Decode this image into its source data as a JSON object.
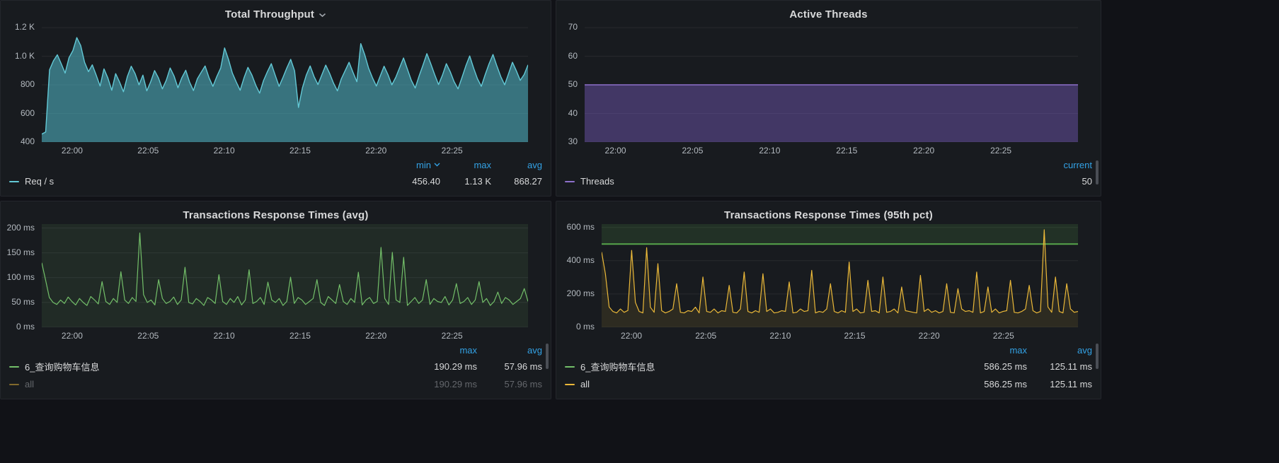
{
  "page": {
    "background": "#111217",
    "panel_background": "#181b1f",
    "accent_blue": "#33a2e5"
  },
  "panels": [
    {
      "title": "Total Throughput",
      "legend": {
        "headers": [
          "min",
          "max",
          "avg"
        ],
        "sorted_column": "min",
        "rows": [
          {
            "label": "Req / s",
            "color": "#63c9d6",
            "values": [
              "456.40",
              "1.13 K",
              "868.27"
            ],
            "dimmed": false
          }
        ]
      }
    },
    {
      "title": "Active Threads",
      "legend": {
        "headers": [
          "current"
        ],
        "rows": [
          {
            "label": "Threads",
            "color": "#8d70cc",
            "values": [
              "50"
            ],
            "dimmed": false
          }
        ]
      }
    },
    {
      "title": "Transactions Response Times (avg)",
      "legend": {
        "headers": [
          "max",
          "avg"
        ],
        "rows": [
          {
            "label": "6_查询购物车信息",
            "color": "#73BF69",
            "values": [
              "190.29 ms",
              "57.96 ms"
            ],
            "dimmed": false
          },
          {
            "label": "all",
            "color": "#EAB839",
            "values": [
              "190.29 ms",
              "57.96 ms"
            ],
            "dimmed": true
          }
        ]
      }
    },
    {
      "title": "Transactions Response Times (95th pct)",
      "legend": {
        "headers": [
          "max",
          "avg"
        ],
        "rows": [
          {
            "label": "6_查询购物车信息",
            "color": "#73BF69",
            "values": [
              "586.25 ms",
              "125.11 ms"
            ],
            "dimmed": false
          },
          {
            "label": "all",
            "color": "#EAB839",
            "values": [
              "586.25 ms",
              "125.11 ms"
            ],
            "dimmed": false
          }
        ]
      }
    }
  ],
  "chart_data": [
    {
      "type": "area",
      "title": "Total Throughput",
      "series_name": "Req / s",
      "legend_position": "bottom",
      "color": "#63c9d6",
      "fill": "rgba(80,180,195,0.58)",
      "line_width": 1.4,
      "y_axis_width": 48,
      "ylim": [
        400,
        1230
      ],
      "y_ticks": [
        {
          "v": 400,
          "label": "400"
        },
        {
          "v": 600,
          "label": "600"
        },
        {
          "v": 800,
          "label": "800"
        },
        {
          "v": 1000,
          "label": "1.0 K"
        },
        {
          "v": 1200,
          "label": "1.2 K"
        }
      ],
      "x_range_minutes": [
        -2,
        30
      ],
      "x_ticks": [
        {
          "m": 0,
          "label": "22:00"
        },
        {
          "m": 5,
          "label": "22:05"
        },
        {
          "m": 10,
          "label": "22:10"
        },
        {
          "m": 15,
          "label": "22:15"
        },
        {
          "m": 20,
          "label": "22:20"
        },
        {
          "m": 25,
          "label": "22:25"
        }
      ],
      "values": [
        456,
        470,
        905,
        968,
        1010,
        948,
        882,
        990,
        1040,
        1130,
        1075,
        958,
        892,
        940,
        868,
        792,
        912,
        848,
        762,
        878,
        820,
        752,
        858,
        930,
        878,
        800,
        868,
        758,
        822,
        900,
        848,
        772,
        832,
        918,
        862,
        780,
        850,
        902,
        820,
        760,
        842,
        888,
        932,
        850,
        790,
        858,
        918,
        1058,
        978,
        882,
        820,
        762,
        850,
        922,
        870,
        798,
        742,
        830,
        892,
        948,
        868,
        790,
        852,
        918,
        978,
        898,
        642,
        778,
        868,
        932,
        858,
        802,
        870,
        938,
        880,
        812,
        758,
        842,
        900,
        958,
        888,
        822,
        1088,
        1012,
        918,
        850,
        792,
        862,
        930,
        872,
        800,
        852,
        920,
        988,
        910,
        832,
        778,
        862,
        938,
        1018,
        948,
        872,
        802,
        868,
        948,
        892,
        822,
        772,
        850,
        932,
        1002,
        918,
        842,
        790,
        872,
        948,
        1012,
        932,
        858,
        800,
        878,
        958,
        898,
        832,
        872,
        940
      ]
    },
    {
      "type": "area",
      "title": "Active Threads",
      "series_name": "Threads",
      "legend_position": "bottom",
      "color": "#8d70cc",
      "fill": "rgba(112,86,178,0.48)",
      "line_width": 1.5,
      "y_axis_width": 30,
      "ylim": [
        30,
        71.5
      ],
      "y_ticks": [
        {
          "v": 30,
          "label": "30"
        },
        {
          "v": 40,
          "label": "40"
        },
        {
          "v": 50,
          "label": "50"
        },
        {
          "v": 60,
          "label": "60"
        },
        {
          "v": 70,
          "label": "70"
        }
      ],
      "x_range_minutes": [
        -2,
        30
      ],
      "x_ticks": [
        {
          "m": 0,
          "label": "22:00"
        },
        {
          "m": 5,
          "label": "22:05"
        },
        {
          "m": 10,
          "label": "22:10"
        },
        {
          "m": 15,
          "label": "22:15"
        },
        {
          "m": 20,
          "label": "22:20"
        },
        {
          "m": 25,
          "label": "22:25"
        }
      ],
      "values": [
        50,
        50,
        50,
        50,
        50,
        50,
        50,
        50
      ]
    },
    {
      "type": "line",
      "title": "Transactions Response Times (avg)",
      "series_name": "6_查询购物车信息",
      "legend_position": "bottom",
      "color": "#73BF69",
      "fill": null,
      "line_width": 1.2,
      "plot_bg": "rgba(115,191,105,0.10)",
      "y_axis_width": 48,
      "ylim": [
        0,
        208
      ],
      "y_ticks": [
        {
          "v": 0,
          "label": "0 ms"
        },
        {
          "v": 50,
          "label": "50 ms"
        },
        {
          "v": 100,
          "label": "100 ms"
        },
        {
          "v": 150,
          "label": "150 ms"
        },
        {
          "v": 200,
          "label": "200 ms"
        }
      ],
      "x_range_minutes": [
        -2,
        30
      ],
      "x_ticks": [
        {
          "m": 0,
          "label": "22:00"
        },
        {
          "m": 5,
          "label": "22:05"
        },
        {
          "m": 10,
          "label": "22:10"
        },
        {
          "m": 15,
          "label": "22:15"
        },
        {
          "m": 20,
          "label": "22:20"
        },
        {
          "m": 25,
          "label": "22:25"
        }
      ],
      "values": [
        130,
        96,
        60,
        50,
        46,
        55,
        48,
        61,
        52,
        45,
        58,
        50,
        44,
        62,
        55,
        47,
        92,
        52,
        46,
        58,
        50,
        112,
        55,
        48,
        60,
        52,
        190,
        66,
        50,
        55,
        45,
        96,
        58,
        48,
        52,
        61,
        46,
        55,
        121,
        50,
        47,
        58,
        52,
        44,
        60,
        55,
        48,
        106,
        52,
        46,
        58,
        50,
        62,
        45,
        55,
        116,
        48,
        52,
        60,
        46,
        91,
        55,
        50,
        58,
        44,
        52,
        101,
        48,
        60,
        55,
        46,
        52,
        58,
        96,
        50,
        44,
        62,
        55,
        48,
        86,
        52,
        46,
        58,
        50,
        111,
        45,
        55,
        60,
        48,
        52,
        161,
        58,
        46,
        151,
        55,
        50,
        141,
        44,
        52,
        60,
        48,
        55,
        96,
        46,
        58,
        52,
        50,
        62,
        45,
        55,
        88,
        48,
        52,
        60,
        46,
        55,
        92,
        50,
        58,
        44,
        52,
        71,
        48,
        60,
        55,
        46,
        52,
        58,
        78,
        52
      ]
    },
    {
      "type": "line",
      "title": "Transactions Response Times (95th pct)",
      "series_name": "all",
      "legend_position": "bottom",
      "color": "#EAB839",
      "fill": "rgba(234,184,57,0.10)",
      "line_width": 1.2,
      "threshold": {
        "v": 500,
        "color": "#56A64B",
        "fill_above": "rgba(86,166,75,0.16)"
      },
      "y_axis_width": 54,
      "ylim": [
        0,
        620
      ],
      "y_ticks": [
        {
          "v": 0,
          "label": "0 ms"
        },
        {
          "v": 200,
          "label": "200 ms"
        },
        {
          "v": 400,
          "label": "400 ms"
        },
        {
          "v": 600,
          "label": "600 ms"
        }
      ],
      "x_range_minutes": [
        -2,
        30
      ],
      "x_ticks": [
        {
          "m": 0,
          "label": "22:00"
        },
        {
          "m": 5,
          "label": "22:05"
        },
        {
          "m": 10,
          "label": "22:10"
        },
        {
          "m": 15,
          "label": "22:15"
        },
        {
          "m": 20,
          "label": "22:20"
        },
        {
          "m": 25,
          "label": "22:25"
        }
      ],
      "values": [
        452,
        322,
        122,
        95,
        86,
        110,
        90,
        101,
        462,
        150,
        95,
        86,
        478,
        120,
        90,
        382,
        100,
        86,
        95,
        110,
        262,
        90,
        86,
        100,
        95,
        121,
        86,
        302,
        95,
        90,
        110,
        86,
        100,
        95,
        252,
        90,
        86,
        110,
        332,
        95,
        86,
        100,
        90,
        322,
        95,
        110,
        86,
        90,
        100,
        95,
        272,
        86,
        90,
        110,
        95,
        100,
        342,
        86,
        95,
        90,
        110,
        262,
        95,
        86,
        100,
        90,
        392,
        95,
        110,
        86,
        90,
        282,
        95,
        100,
        86,
        302,
        90,
        95,
        110,
        86,
        242,
        100,
        95,
        90,
        86,
        312,
        95,
        110,
        90,
        100,
        86,
        95,
        262,
        90,
        86,
        232,
        110,
        95,
        100,
        90,
        332,
        86,
        95,
        242,
        90,
        110,
        86,
        95,
        100,
        282,
        90,
        86,
        95,
        110,
        252,
        100,
        86,
        95,
        586,
        122,
        90,
        302,
        95,
        86,
        262,
        110,
        90,
        95
      ]
    }
  ]
}
